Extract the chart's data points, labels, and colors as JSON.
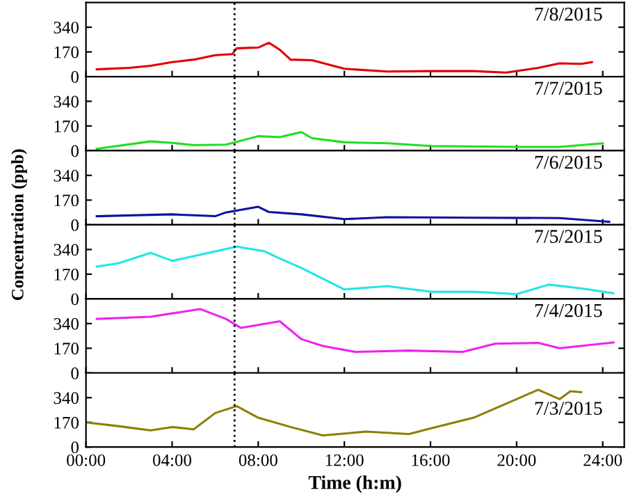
{
  "chart_data": [
    {
      "type": "line",
      "ylabel": "Concentration (ppb)",
      "annotations": [
        "7/8/2015"
      ],
      "x": [
        0.5,
        2,
        3,
        4,
        5,
        6,
        6.8,
        7,
        8,
        8.5,
        9,
        9.5,
        10.5,
        12,
        14,
        16,
        18,
        19.5,
        21,
        22,
        23,
        23.5
      ],
      "series": [
        {
          "color": "#e00000",
          "values": [
            50,
            60,
            75,
            100,
            117,
            148,
            155,
            195,
            200,
            233,
            185,
            117,
            113,
            54,
            35,
            38,
            38,
            28,
            60,
            91,
            88,
            100
          ]
        }
      ],
      "xlim": [
        0,
        25
      ],
      "xticks": [
        {
          "value": 0,
          "label": null
        },
        {
          "value": 4,
          "label": null
        },
        {
          "value": 8,
          "label": null
        },
        {
          "value": 12,
          "label": null
        },
        {
          "value": 16,
          "label": null
        },
        {
          "value": 20,
          "label": null
        },
        {
          "value": 24,
          "label": null
        }
      ],
      "ylim": [
        0,
        510
      ],
      "yticks": [
        0,
        170,
        340
      ],
      "tick_labels": "y",
      "ref_lines": [
        {
          "axis": "x",
          "value": 6.9,
          "line_style": "dotted",
          "color": "#000000"
        }
      ],
      "grid": false,
      "legend": false
    },
    {
      "type": "line",
      "annotations": [
        "7/7/2015"
      ],
      "x": [
        0.5,
        3,
        4,
        5,
        6.5,
        8,
        9,
        10,
        10.5,
        12,
        14,
        16,
        20,
        22,
        24
      ],
      "series": [
        {
          "color": "#22dd22",
          "values": [
            13,
            64,
            54,
            38,
            42,
            100,
            93,
            128,
            86,
            58,
            51,
            32,
            26,
            26,
            51
          ]
        }
      ],
      "xlim": [
        0,
        25
      ],
      "xticks": [
        {
          "value": 0,
          "label": null
        },
        {
          "value": 4,
          "label": null
        },
        {
          "value": 8,
          "label": null
        },
        {
          "value": 12,
          "label": null
        },
        {
          "value": 16,
          "label": null
        },
        {
          "value": 20,
          "label": null
        },
        {
          "value": 24,
          "label": null
        }
      ],
      "ylim": [
        0,
        510
      ],
      "yticks": [
        0,
        170,
        340
      ],
      "tick_labels": "y",
      "ref_lines": [
        {
          "axis": "x",
          "value": 6.9,
          "line_style": "dotted",
          "color": "#000000"
        }
      ],
      "grid": false,
      "legend": false
    },
    {
      "type": "line",
      "annotations": [
        "7/6/2015"
      ],
      "x": [
        0.5,
        4,
        6,
        6.5,
        8,
        8.5,
        10,
        12,
        14,
        18,
        22,
        24.3
      ],
      "series": [
        {
          "color": "#1010a0",
          "values": [
            59,
            72,
            59,
            85,
            124,
            88,
            72,
            39,
            52,
            49,
            46,
            20
          ]
        }
      ],
      "xlim": [
        0,
        25
      ],
      "xticks": [
        {
          "value": 0,
          "label": null
        },
        {
          "value": 4,
          "label": null
        },
        {
          "value": 8,
          "label": null
        },
        {
          "value": 12,
          "label": null
        },
        {
          "value": 16,
          "label": null
        },
        {
          "value": 20,
          "label": null
        },
        {
          "value": 24,
          "label": null
        }
      ],
      "ylim": [
        0,
        510
      ],
      "yticks": [
        0,
        170,
        340
      ],
      "tick_labels": "y",
      "ref_lines": [
        {
          "axis": "x",
          "value": 6.9,
          "line_style": "dotted",
          "color": "#000000"
        }
      ],
      "grid": false,
      "legend": false
    },
    {
      "type": "line",
      "annotations": [
        "7/5/2015"
      ],
      "x": [
        0.5,
        1.5,
        3,
        4,
        5,
        7,
        8.3,
        9,
        10,
        12,
        14,
        16,
        18,
        20,
        21.5,
        23,
        24.5
      ],
      "series": [
        {
          "color": "#22e5e5",
          "values": [
            222,
            245,
            317,
            262,
            294,
            360,
            327,
            278,
            213,
            65,
            88,
            49,
            49,
            33,
            98,
            72,
            39
          ]
        }
      ],
      "xlim": [
        0,
        25
      ],
      "xticks": [
        {
          "value": 0,
          "label": null
        },
        {
          "value": 4,
          "label": null
        },
        {
          "value": 8,
          "label": null
        },
        {
          "value": 12,
          "label": null
        },
        {
          "value": 16,
          "label": null
        },
        {
          "value": 20,
          "label": null
        },
        {
          "value": 24,
          "label": null
        }
      ],
      "ylim": [
        0,
        510
      ],
      "yticks": [
        0,
        170,
        340
      ],
      "tick_labels": "y",
      "ref_lines": [
        {
          "axis": "x",
          "value": 6.9,
          "line_style": "dotted",
          "color": "#000000"
        }
      ],
      "grid": false,
      "legend": false
    },
    {
      "type": "line",
      "annotations": [
        "7/4/2015"
      ],
      "x": [
        0.5,
        3,
        5.3,
        6.5,
        7.2,
        9,
        10,
        11,
        12.5,
        15,
        17.5,
        19,
        21,
        22,
        24.5
      ],
      "series": [
        {
          "color": "#ee22ee",
          "values": [
            372,
            387,
            440,
            372,
            310,
            356,
            233,
            186,
            145,
            154,
            145,
            201,
            207,
            170,
            210
          ]
        }
      ],
      "xlim": [
        0,
        25
      ],
      "xticks": [
        {
          "value": 0,
          "label": null
        },
        {
          "value": 4,
          "label": null
        },
        {
          "value": 8,
          "label": null
        },
        {
          "value": 12,
          "label": null
        },
        {
          "value": 16,
          "label": null
        },
        {
          "value": 20,
          "label": null
        },
        {
          "value": 24,
          "label": null
        }
      ],
      "ylim": [
        0,
        510
      ],
      "yticks": [
        0,
        170,
        340
      ],
      "tick_labels": "y",
      "ref_lines": [
        {
          "axis": "x",
          "value": 6.9,
          "line_style": "dotted",
          "color": "#000000"
        }
      ],
      "grid": false,
      "legend": false
    },
    {
      "type": "line",
      "xlabel": "Time (h:m)",
      "annotations": [
        "7/3/2015"
      ],
      "x": [
        0,
        1.5,
        3,
        4,
        5,
        6,
        7,
        8,
        9.5,
        11,
        13,
        15,
        16,
        18,
        20,
        21,
        22,
        22.5,
        23
      ],
      "series": [
        {
          "color": "#8b8000",
          "values": [
            170,
            144,
            115,
            138,
            122,
            234,
            282,
            202,
            138,
            80,
            106,
            90,
            128,
            202,
            330,
            394,
            330,
            384,
            378
          ]
        }
      ],
      "xlim": [
        0,
        25
      ],
      "xticks": [
        {
          "value": 0,
          "label": "00:00"
        },
        {
          "value": 4,
          "label": "04:00"
        },
        {
          "value": 8,
          "label": "08:00"
        },
        {
          "value": 12,
          "label": "12:00"
        },
        {
          "value": 16,
          "label": "16:00"
        },
        {
          "value": 20,
          "label": "20:00"
        },
        {
          "value": 24,
          "label": "24:00"
        }
      ],
      "ylim": [
        0,
        510
      ],
      "yticks": [
        0,
        170,
        340
      ],
      "ref_lines": [
        {
          "axis": "x",
          "value": 6.9,
          "line_style": "dotted",
          "color": "#000000"
        }
      ],
      "grid": false,
      "legend": false
    }
  ]
}
